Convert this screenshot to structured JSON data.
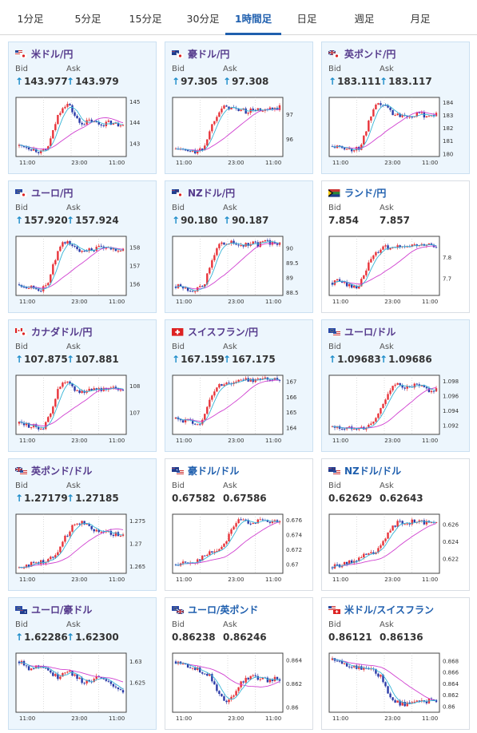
{
  "tabs": [
    {
      "label": "1分足",
      "active": false
    },
    {
      "label": "5分足",
      "active": false
    },
    {
      "label": "15分足",
      "active": false
    },
    {
      "label": "30分足",
      "active": false
    },
    {
      "label": "1時間足",
      "active": true
    },
    {
      "label": "日足",
      "active": false
    },
    {
      "label": "週足",
      "active": false
    },
    {
      "label": "月足",
      "active": false
    }
  ],
  "labels": {
    "bid": "Bid",
    "ask": "Ask",
    "up_arrow": "↑"
  },
  "x_ticks": [
    "11:00",
    "23:00",
    "11:00"
  ],
  "cards": [
    {
      "title": "米ドル/円",
      "flag": "us-jp",
      "bid": "143.977",
      "ask": "143.979",
      "direction": "up",
      "chart_data": {
        "type": "candlestick",
        "y_ticks": [
          "145",
          "144",
          "143"
        ],
        "ylim": [
          142.4,
          145.2
        ],
        "trend": [
          142.9,
          142.9,
          142.8,
          142.7,
          142.6,
          142.7,
          143.4,
          144.3,
          144.8,
          144.9,
          144.4,
          144.0,
          144.0,
          144.1,
          144.0,
          143.9,
          144.0,
          144.0,
          143.9,
          144.0
        ]
      }
    },
    {
      "title": "豪ドル/円",
      "flag": "au-jp",
      "bid": "97.305",
      "ask": "97.308",
      "direction": "up",
      "chart_data": {
        "type": "candlestick",
        "y_ticks": [
          "97",
          "96"
        ],
        "ylim": [
          95.3,
          97.7
        ],
        "trend": [
          95.6,
          95.6,
          95.5,
          95.5,
          95.5,
          95.6,
          96.2,
          96.8,
          97.2,
          97.3,
          97.3,
          97.2,
          97.2,
          97.1,
          97.2,
          97.2,
          97.1,
          97.2,
          97.2,
          97.3
        ]
      }
    },
    {
      "title": "英ポンド/円",
      "flag": "uk-jp",
      "bid": "183.111",
      "ask": "183.117",
      "direction": "up",
      "chart_data": {
        "type": "candlestick",
        "y_ticks": [
          "184",
          "183",
          "182",
          "181",
          "180"
        ],
        "ylim": [
          179.8,
          184.4
        ],
        "trend": [
          180.6,
          180.5,
          180.5,
          180.4,
          180.3,
          180.5,
          181.6,
          182.9,
          183.7,
          183.9,
          183.6,
          183.2,
          183.0,
          183.1,
          183.0,
          183.0,
          183.1,
          183.0,
          183.0,
          183.1
        ]
      }
    },
    {
      "title": "ユーロ/円",
      "flag": "eu-jp",
      "bid": "157.920",
      "ask": "157.924",
      "direction": "up",
      "chart_data": {
        "type": "candlestick",
        "y_ticks": [
          "158",
          "157",
          "156"
        ],
        "ylim": [
          155.4,
          158.6
        ],
        "trend": [
          156.0,
          155.9,
          155.9,
          155.8,
          155.7,
          155.9,
          156.8,
          157.7,
          158.2,
          158.3,
          158.0,
          157.8,
          157.9,
          157.9,
          157.9,
          158.0,
          157.9,
          157.9,
          157.9,
          157.9
        ]
      }
    },
    {
      "title": "NZドル/円",
      "flag": "nz-jp",
      "bid": "90.180",
      "ask": "90.187",
      "direction": "up",
      "chart_data": {
        "type": "candlestick",
        "y_ticks": [
          "90",
          "89.5",
          "89",
          "88.5"
        ],
        "ylim": [
          88.4,
          90.4
        ],
        "trend": [
          88.7,
          88.7,
          88.6,
          88.6,
          88.6,
          88.7,
          89.2,
          89.8,
          90.1,
          90.2,
          90.2,
          90.1,
          90.1,
          90.1,
          90.2,
          90.1,
          90.2,
          90.2,
          90.1,
          90.2
        ]
      }
    },
    {
      "title": "ランド/円",
      "flag": "za-jp",
      "bid": "7.854",
      "ask": "7.857",
      "direction": "plain",
      "chart_data": {
        "type": "candlestick",
        "y_ticks": [
          "7.8",
          "7.7"
        ],
        "ylim": [
          7.62,
          7.9
        ],
        "trend": [
          7.68,
          7.69,
          7.68,
          7.67,
          7.66,
          7.67,
          7.73,
          7.79,
          7.82,
          7.84,
          7.85,
          7.84,
          7.85,
          7.86,
          7.85,
          7.86,
          7.85,
          7.86,
          7.86,
          7.85
        ]
      }
    },
    {
      "title": "カナダドル/円",
      "flag": "ca-jp",
      "bid": "107.875",
      "ask": "107.881",
      "direction": "up",
      "chart_data": {
        "type": "candlestick",
        "y_ticks": [
          "108",
          "107"
        ],
        "ylim": [
          106.2,
          108.4
        ],
        "trend": [
          106.6,
          106.6,
          106.5,
          106.5,
          106.4,
          106.6,
          107.2,
          107.8,
          108.1,
          108.1,
          107.9,
          107.8,
          107.8,
          107.9,
          107.9,
          107.9,
          107.8,
          107.9,
          107.9,
          107.9
        ]
      }
    },
    {
      "title": "スイスフラン/円",
      "flag": "ch-jp",
      "bid": "167.159",
      "ask": "167.175",
      "direction": "up",
      "chart_data": {
        "type": "candlestick",
        "y_ticks": [
          "167",
          "166",
          "165",
          "164"
        ],
        "ylim": [
          163.6,
          167.4
        ],
        "trend": [
          164.6,
          164.5,
          164.5,
          164.4,
          164.3,
          164.5,
          165.6,
          166.4,
          166.8,
          166.9,
          166.9,
          167.0,
          167.1,
          167.1,
          167.1,
          167.2,
          167.1,
          167.2,
          167.1,
          167.2
        ]
      }
    },
    {
      "title": "ユーロ/ドル",
      "flag": "eu-us",
      "bid": "1.09683",
      "ask": "1.09686",
      "direction": "up",
      "chart_data": {
        "type": "candlestick",
        "y_ticks": [
          "1.098",
          "1.096",
          "1.094",
          "1.092"
        ],
        "ylim": [
          1.0908,
          1.0988
        ],
        "trend": [
          1.0918,
          1.0917,
          1.0916,
          1.0916,
          1.0918,
          1.0917,
          1.0916,
          1.0921,
          1.093,
          1.0945,
          1.0962,
          1.0972,
          1.0975,
          1.0973,
          1.097,
          1.0974,
          1.0972,
          1.097,
          1.0966,
          1.0968
        ]
      }
    },
    {
      "title": "英ポンド/ドル",
      "flag": "uk-us",
      "bid": "1.27179",
      "ask": "1.27185",
      "direction": "up",
      "chart_data": {
        "type": "candlestick",
        "y_ticks": [
          "1.275",
          "1.27",
          "1.265"
        ],
        "ylim": [
          1.2635,
          1.2765
        ],
        "trend": [
          1.2648,
          1.2652,
          1.2655,
          1.2658,
          1.266,
          1.2663,
          1.267,
          1.2685,
          1.2705,
          1.2725,
          1.2742,
          1.2748,
          1.2745,
          1.2738,
          1.273,
          1.2728,
          1.2725,
          1.2722,
          1.272,
          1.2718
        ]
      }
    },
    {
      "title": "豪ドル/ドル",
      "flag": "au-us",
      "bid": "0.67582",
      "ask": "0.67586",
      "direction": "plain",
      "chart_data": {
        "type": "candlestick",
        "y_ticks": [
          "0.676",
          "0.674",
          "0.672",
          "0.67"
        ],
        "ylim": [
          0.6688,
          0.6768
        ],
        "trend": [
          0.67,
          0.6702,
          0.6701,
          0.6703,
          0.6706,
          0.671,
          0.6715,
          0.6718,
          0.6721,
          0.673,
          0.6745,
          0.6757,
          0.676,
          0.6758,
          0.6757,
          0.6759,
          0.6758,
          0.6756,
          0.6757,
          0.6758
        ]
      }
    },
    {
      "title": "NZドル/ドル",
      "flag": "nz-us",
      "bid": "0.62629",
      "ask": "0.62643",
      "direction": "plain",
      "chart_data": {
        "type": "candlestick",
        "y_ticks": [
          "0.626",
          "0.624",
          "0.622"
        ],
        "ylim": [
          0.6203,
          0.6272
        ],
        "trend": [
          0.621,
          0.6212,
          0.6213,
          0.6215,
          0.6218,
          0.6221,
          0.6224,
          0.6226,
          0.6228,
          0.6235,
          0.6248,
          0.6258,
          0.6262,
          0.6263,
          0.6262,
          0.6264,
          0.6263,
          0.6262,
          0.6262,
          0.6263
        ]
      }
    },
    {
      "title": "ユーロ/豪ドル",
      "flag": "eu-au",
      "bid": "1.62286",
      "ask": "1.62300",
      "direction": "up",
      "chart_data": {
        "type": "candlestick",
        "y_ticks": [
          "1.63",
          "1.625"
        ],
        "ylim": [
          1.618,
          1.632
        ],
        "trend": [
          1.63,
          1.6295,
          1.6282,
          1.6288,
          1.6292,
          1.6285,
          1.627,
          1.6262,
          1.6275,
          1.628,
          1.6268,
          1.6258,
          1.625,
          1.6255,
          1.6262,
          1.6258,
          1.625,
          1.6245,
          1.6238,
          1.6229
        ]
      }
    },
    {
      "title": "ユーロ/英ポンド",
      "flag": "eu-uk",
      "bid": "0.86238",
      "ask": "0.86246",
      "direction": "plain",
      "chart_data": {
        "type": "candlestick",
        "y_ticks": [
          "0.864",
          "0.862",
          "0.86"
        ],
        "ylim": [
          0.8596,
          0.8646
        ],
        "trend": [
          0.8639,
          0.8637,
          0.8636,
          0.8634,
          0.8632,
          0.863,
          0.8628,
          0.862,
          0.8612,
          0.8604,
          0.8606,
          0.8615,
          0.8622,
          0.8625,
          0.8627,
          0.8625,
          0.8624,
          0.8623,
          0.8624,
          0.8624
        ]
      }
    },
    {
      "title": "米ドル/スイスフラン",
      "flag": "us-ch",
      "bid": "0.86121",
      "ask": "0.86136",
      "direction": "plain",
      "chart_data": {
        "type": "candlestick",
        "y_ticks": [
          "0.868",
          "0.866",
          "0.864",
          "0.862",
          "0.86"
        ],
        "ylim": [
          0.859,
          0.8694
        ],
        "trend": [
          0.8682,
          0.8678,
          0.8676,
          0.8673,
          0.867,
          0.8668,
          0.8666,
          0.8664,
          0.866,
          0.865,
          0.863,
          0.8612,
          0.8606,
          0.8604,
          0.8606,
          0.8608,
          0.8607,
          0.8609,
          0.8611,
          0.8612
        ]
      }
    }
  ]
}
